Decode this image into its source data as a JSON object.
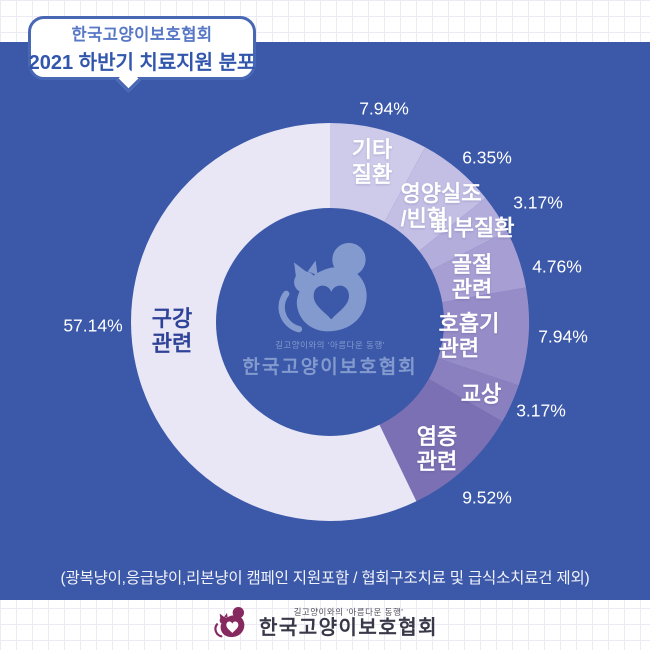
{
  "title_bubble": {
    "line1": "한국고양이보호협회",
    "line2": "2021 하반기 치료지원 분포"
  },
  "chart_data": {
    "type": "pie",
    "subtype": "donut",
    "title": "2021 하반기 치료지원 분포",
    "orientation": "clockwise-from-top",
    "unit": "%",
    "background_color": "#3B58A9",
    "slices": [
      {
        "id": "other-diseases",
        "label": "기타질환",
        "label_lines": [
          "기타",
          "질환"
        ],
        "value": 7.94,
        "pct_label": "7.94%",
        "color": "#CDCAEA"
      },
      {
        "id": "malnutrition-anemia",
        "label": "영양실조/빈혈",
        "label_lines": [
          "영양실조",
          "/빈혈"
        ],
        "value": 6.35,
        "pct_label": "6.35%",
        "color": "#C2BEE4"
      },
      {
        "id": "skin-disease",
        "label": "피부질환",
        "label_lines": [
          "피부질환"
        ],
        "value": 3.17,
        "pct_label": "3.17%",
        "color": "#B3ADDC"
      },
      {
        "id": "fracture",
        "label": "골절관련",
        "label_lines": [
          "골절",
          "관련"
        ],
        "value": 4.76,
        "pct_label": "4.76%",
        "color": "#A79FD3"
      },
      {
        "id": "respiratory",
        "label": "호흡기관련",
        "label_lines": [
          "호흡기",
          "관련"
        ],
        "value": 7.94,
        "pct_label": "7.94%",
        "color": "#968DC8"
      },
      {
        "id": "bite-wound",
        "label": "교상",
        "label_lines": [
          "교상"
        ],
        "value": 3.17,
        "pct_label": "3.17%",
        "color": "#8A80BF"
      },
      {
        "id": "inflammation",
        "label": "염증관련",
        "label_lines": [
          "염증",
          "관련"
        ],
        "value": 9.52,
        "pct_label": "9.52%",
        "color": "#7B70B3"
      },
      {
        "id": "oral",
        "label": "구강관련",
        "label_lines": [
          "구강",
          "관련"
        ],
        "value": 57.14,
        "pct_label": "57.14%",
        "color": "#E9E7F6",
        "label_color": "#2E4397"
      }
    ]
  },
  "watermark": {
    "tagline": "길고양이와의  '아름다운 동행'",
    "name": "한국고양이보호협회"
  },
  "note": "(광복냥이,응급냥이,리본냥이 캠페인 지원포함 / 협회구조치료 및 급식소치료건 제외)",
  "footer": {
    "tagline": "길고양이와의  '아름다운 동행'",
    "name": "한국고양이보호협회"
  },
  "colors": {
    "panel_blue": "#3B58A9",
    "bubble_border": "#4867B4",
    "bubble_text1": "#5878C5",
    "bubble_text2": "#3156AC",
    "watermark_blue": "#8AA0D2",
    "footer_cat_plum": "#86295F",
    "footer_text_dark": "#383849"
  }
}
